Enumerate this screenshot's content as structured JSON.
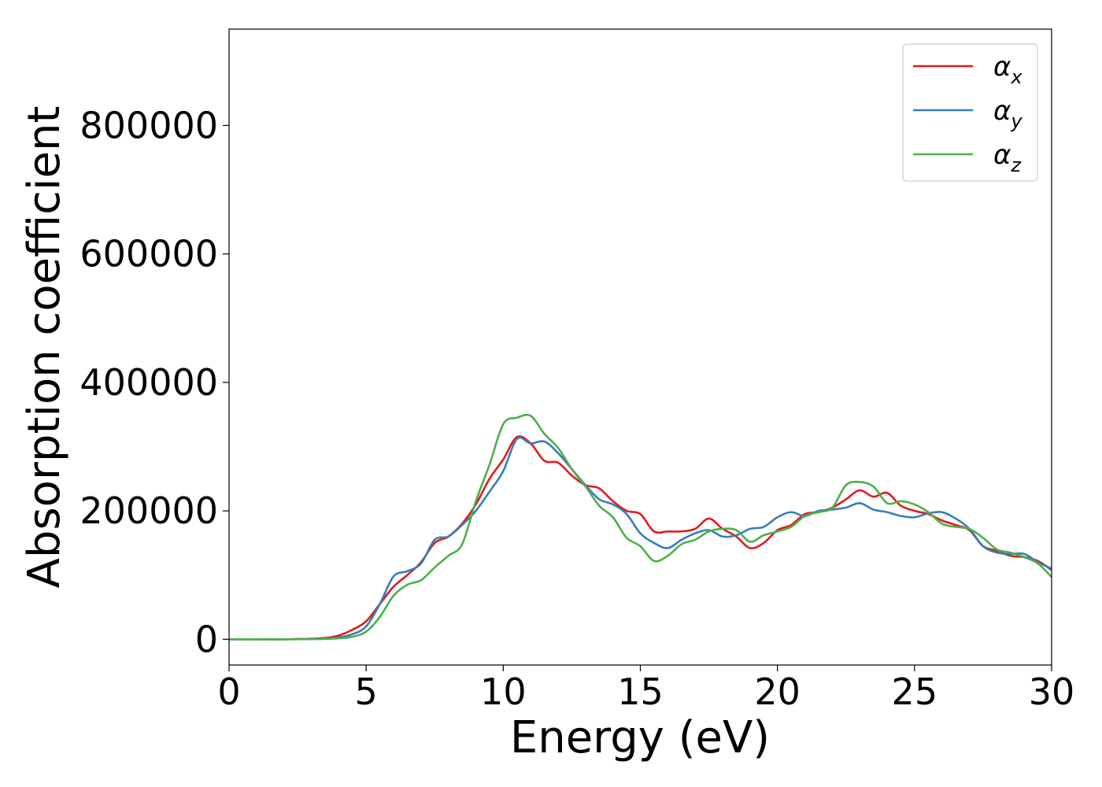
{
  "chart_data": {
    "type": "line",
    "title": "",
    "xlabel": "Energy (eV)",
    "ylabel": "Absorption coefficient",
    "xlim": [
      0,
      30
    ],
    "ylim": [
      -40000,
      950000
    ],
    "xticks": [
      0,
      5,
      10,
      15,
      20,
      25,
      30
    ],
    "yticks": [
      0,
      200000,
      400000,
      600000,
      800000
    ],
    "grid": false,
    "legend_position": "top-right",
    "series": [
      {
        "name": "α_x",
        "legend_main": "α",
        "legend_sub": "x",
        "color": "#e41a1c",
        "x": [
          0,
          1,
          2,
          3,
          3.5,
          4,
          4.5,
          5,
          5.5,
          6,
          6.5,
          7,
          7.5,
          8,
          8.5,
          9,
          9.5,
          10,
          10.5,
          11,
          11.5,
          12,
          12.5,
          13,
          13.5,
          14,
          14.5,
          15,
          15.5,
          16,
          16.5,
          17,
          17.5,
          18,
          18.5,
          19,
          19.5,
          20,
          20.5,
          21,
          21.5,
          22,
          22.5,
          23,
          23.5,
          24,
          24.5,
          25,
          25.5,
          26,
          26.5,
          27,
          27.5,
          28,
          28.5,
          29,
          29.5,
          30
        ],
        "y": [
          0,
          0,
          0,
          1000,
          2000,
          6000,
          15000,
          28000,
          55000,
          82000,
          100000,
          120000,
          150000,
          160000,
          180000,
          210000,
          250000,
          280000,
          315000,
          305000,
          278000,
          275000,
          255000,
          240000,
          235000,
          215000,
          200000,
          195000,
          168000,
          168000,
          168000,
          172000,
          188000,
          172000,
          160000,
          142000,
          150000,
          170000,
          178000,
          195000,
          198000,
          205000,
          218000,
          232000,
          222000,
          228000,
          208000,
          200000,
          195000,
          185000,
          178000,
          170000,
          145000,
          138000,
          130000,
          128000,
          122000,
          108000
        ]
      },
      {
        "name": "α_y",
        "legend_main": "α",
        "legend_sub": "y",
        "color": "#377eb8",
        "x": [
          0,
          1,
          2,
          3,
          3.5,
          4,
          4.5,
          5,
          5.5,
          6,
          6.5,
          7,
          7.5,
          8,
          8.5,
          9,
          9.5,
          10,
          10.5,
          11,
          11.5,
          12,
          12.5,
          13,
          13.5,
          14,
          14.5,
          15,
          15.5,
          16,
          16.5,
          17,
          17.5,
          18,
          18.5,
          19,
          19.5,
          20,
          20.5,
          21,
          21.5,
          22,
          22.5,
          23,
          23.5,
          24,
          24.5,
          25,
          25.5,
          26,
          26.5,
          27,
          27.5,
          28,
          28.5,
          29,
          29.5,
          30
        ],
        "y": [
          0,
          0,
          0,
          500,
          1000,
          3000,
          8000,
          20000,
          55000,
          98000,
          106000,
          118000,
          155000,
          160000,
          178000,
          200000,
          230000,
          262000,
          312000,
          305000,
          308000,
          290000,
          265000,
          240000,
          218000,
          210000,
          195000,
          165000,
          150000,
          142000,
          155000,
          165000,
          170000,
          160000,
          162000,
          172000,
          175000,
          190000,
          198000,
          192000,
          200000,
          202000,
          205000,
          212000,
          202000,
          198000,
          192000,
          190000,
          196000,
          198000,
          188000,
          172000,
          145000,
          135000,
          133000,
          133000,
          120000,
          110000
        ]
      },
      {
        "name": "α_z",
        "legend_main": "α",
        "legend_sub": "z",
        "color": "#4daf4a",
        "x": [
          0,
          1,
          2,
          3,
          3.5,
          4,
          4.5,
          5,
          5.5,
          6,
          6.5,
          7,
          7.5,
          8,
          8.5,
          9,
          9.5,
          10,
          10.5,
          11,
          11.5,
          12,
          12.5,
          13,
          13.5,
          14,
          14.5,
          15,
          15.5,
          16,
          16.5,
          17,
          17.5,
          18,
          18.5,
          19,
          19.5,
          20,
          20.5,
          21,
          21.5,
          22,
          22.5,
          23,
          23.5,
          24,
          24.5,
          25,
          25.5,
          26,
          26.5,
          27,
          27.5,
          28,
          28.5,
          29,
          29.5,
          30
        ],
        "y": [
          0,
          0,
          0,
          300,
          600,
          1500,
          4000,
          12000,
          35000,
          68000,
          85000,
          92000,
          112000,
          130000,
          148000,
          215000,
          272000,
          335000,
          345000,
          348000,
          320000,
          298000,
          265000,
          238000,
          208000,
          190000,
          158000,
          145000,
          122000,
          130000,
          148000,
          155000,
          168000,
          172000,
          170000,
          152000,
          162000,
          168000,
          175000,
          192000,
          198000,
          205000,
          240000,
          245000,
          238000,
          212000,
          215000,
          210000,
          198000,
          180000,
          175000,
          172000,
          158000,
          140000,
          135000,
          128000,
          118000,
          97000
        ]
      }
    ]
  }
}
